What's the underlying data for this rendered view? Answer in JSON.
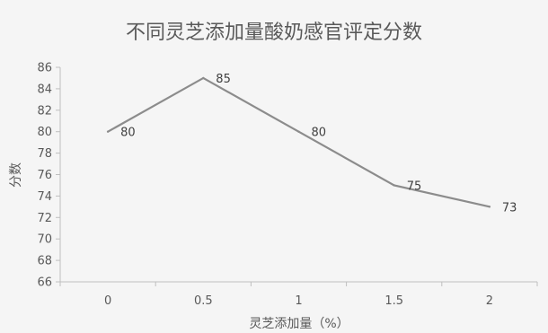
{
  "chart_data": {
    "type": "line",
    "title": "不同灵芝添加量酸奶感官评定分数",
    "xlabel": "灵芝添加量（%）",
    "ylabel": "分数",
    "categories": [
      "0",
      "0.5",
      "1",
      "1.5",
      "2"
    ],
    "series": [
      {
        "values": [
          80,
          85,
          80,
          75,
          73
        ]
      }
    ],
    "ylim": [
      66,
      86
    ],
    "yticks": [
      66,
      68,
      70,
      72,
      74,
      76,
      78,
      80,
      82,
      84,
      86
    ],
    "grid": false,
    "legend": "none",
    "colors": {
      "line": "#8c8c8c",
      "axis": "#bfbfbf",
      "text": "#595959",
      "background": "#f5f5f5"
    }
  }
}
